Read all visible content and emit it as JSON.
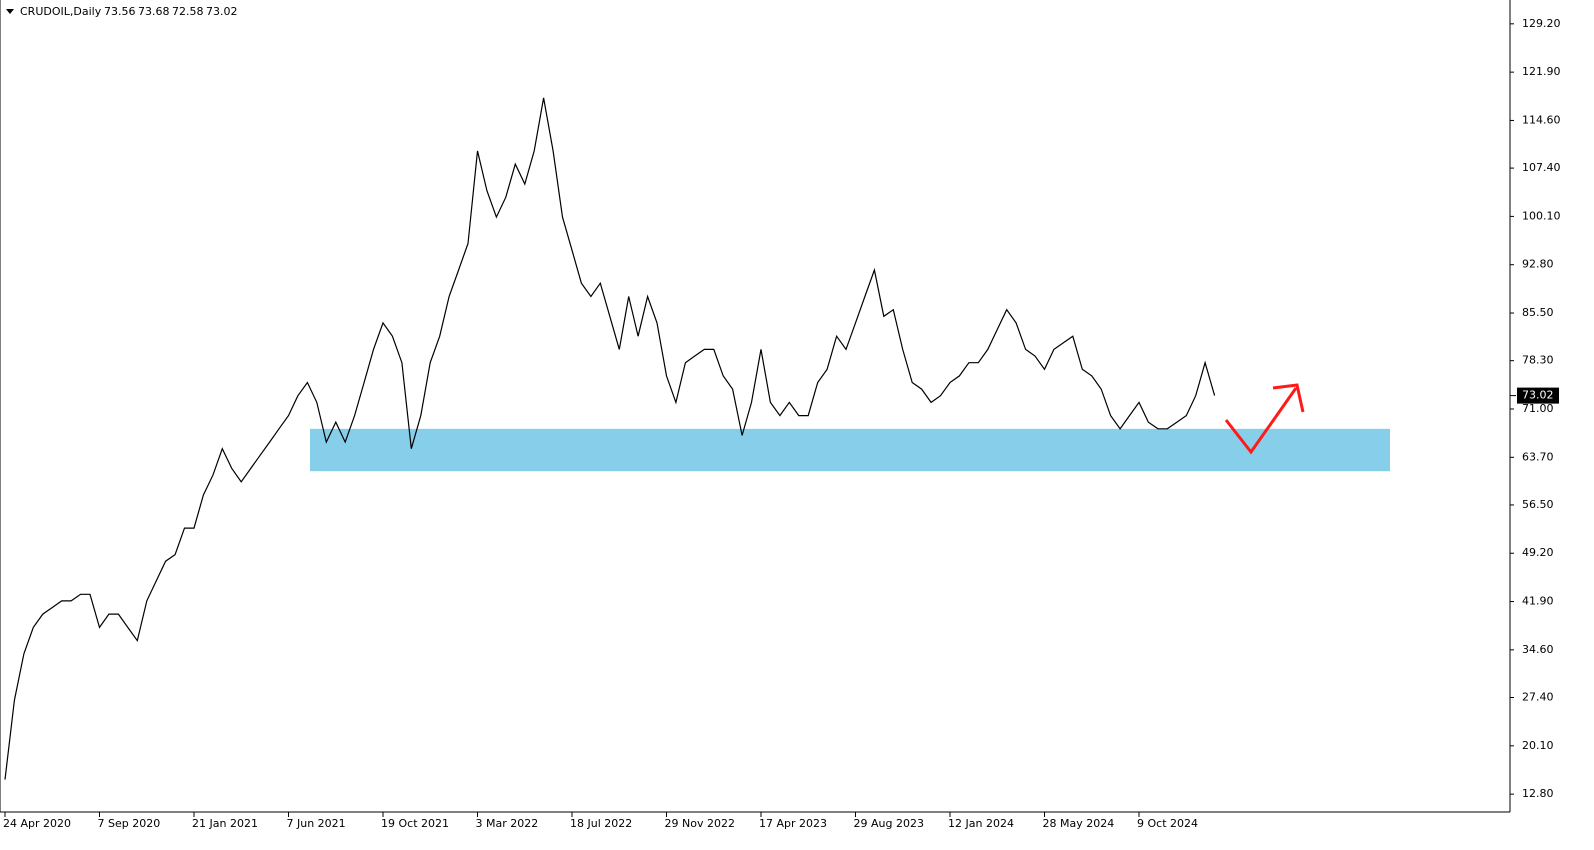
{
  "chart_data": {
    "type": "line",
    "title": "CRUDOIL,Daily",
    "ohlc": [
      73.56,
      73.68,
      72.58,
      73.02
    ],
    "categories": [
      "24 Apr 2020",
      null,
      null,
      null,
      null,
      null,
      null,
      null,
      null,
      null,
      "7 Sep 2020",
      null,
      null,
      null,
      null,
      null,
      null,
      null,
      null,
      null,
      "21 Jan 2021",
      null,
      null,
      null,
      null,
      null,
      null,
      null,
      null,
      null,
      "7 Jun 2021",
      null,
      null,
      null,
      null,
      null,
      null,
      null,
      null,
      null,
      "19 Oct 2021",
      null,
      null,
      null,
      null,
      null,
      null,
      null,
      null,
      null,
      "3 Mar 2022",
      null,
      null,
      null,
      null,
      null,
      null,
      null,
      null,
      null,
      "18 Jul 2022",
      null,
      null,
      null,
      null,
      null,
      null,
      null,
      null,
      null,
      "29 Nov 2022",
      null,
      null,
      null,
      null,
      null,
      null,
      null,
      null,
      null,
      "17 Apr 2023",
      null,
      null,
      null,
      null,
      null,
      null,
      null,
      null,
      null,
      "29 Aug 2023",
      null,
      null,
      null,
      null,
      null,
      null,
      null,
      null,
      null,
      "12 Jan 2024",
      null,
      null,
      null,
      null,
      null,
      null,
      null,
      null,
      null,
      "28 May 2024",
      null,
      null,
      null,
      null,
      null,
      null,
      null,
      null,
      null,
      "9 Oct 2024",
      null,
      null,
      null,
      null,
      null,
      null,
      null,
      null
    ],
    "values": [
      15,
      27,
      34,
      38,
      40,
      41,
      42,
      42,
      43,
      43,
      38,
      40,
      40,
      38,
      36,
      42,
      45,
      48,
      49,
      53,
      53,
      58,
      61,
      65,
      62,
      60,
      62,
      64,
      66,
      68,
      70,
      73,
      75,
      72,
      66,
      69,
      66,
      70,
      75,
      80,
      84,
      82,
      78,
      65,
      70,
      78,
      82,
      88,
      92,
      96,
      110,
      104,
      100,
      103,
      108,
      105,
      110,
      118,
      110,
      100,
      95,
      90,
      88,
      90,
      85,
      80,
      88,
      82,
      88,
      84,
      76,
      72,
      78,
      79,
      80,
      80,
      76,
      74,
      67,
      72,
      80,
      72,
      70,
      72,
      70,
      70,
      75,
      77,
      82,
      80,
      84,
      88,
      92,
      85,
      86,
      80,
      75,
      74,
      72,
      73,
      75,
      76,
      78,
      78,
      80,
      83,
      86,
      84,
      80,
      79,
      77,
      80,
      81,
      82,
      77,
      76,
      74,
      70,
      68,
      70,
      72,
      69,
      68,
      68,
      69,
      70,
      73,
      78,
      73.02
    ],
    "color": "#000000",
    "zone": {
      "range": [
        61.6,
        68.0
      ],
      "color": "#87ceeb"
    },
    "ylim": [
      10.1,
      132.8
    ],
    "yticks": [
      {
        "value": 129.2,
        "label": "129.20"
      },
      {
        "value": 121.9,
        "label": "121.90"
      },
      {
        "value": 114.6,
        "label": "114.60"
      },
      {
        "value": 107.4,
        "label": "107.40"
      },
      {
        "value": 100.1,
        "label": "100.10"
      },
      {
        "value": 92.8,
        "label": "92.80"
      },
      {
        "value": 85.5,
        "label": "85.50"
      },
      {
        "value": 78.3,
        "label": "78.30"
      },
      {
        "value": 71.0,
        "label": "71.00"
      },
      {
        "value": 63.7,
        "label": "63.70"
      },
      {
        "value": 56.5,
        "label": "56.50"
      },
      {
        "value": 49.2,
        "label": "49.20"
      },
      {
        "value": 41.9,
        "label": "41.90"
      },
      {
        "value": 34.6,
        "label": "34.60"
      },
      {
        "value": 27.4,
        "label": "27.40"
      },
      {
        "value": 20.1,
        "label": "20.10"
      },
      {
        "value": 12.8,
        "label": "12.80"
      }
    ],
    "grid": false
  }
}
